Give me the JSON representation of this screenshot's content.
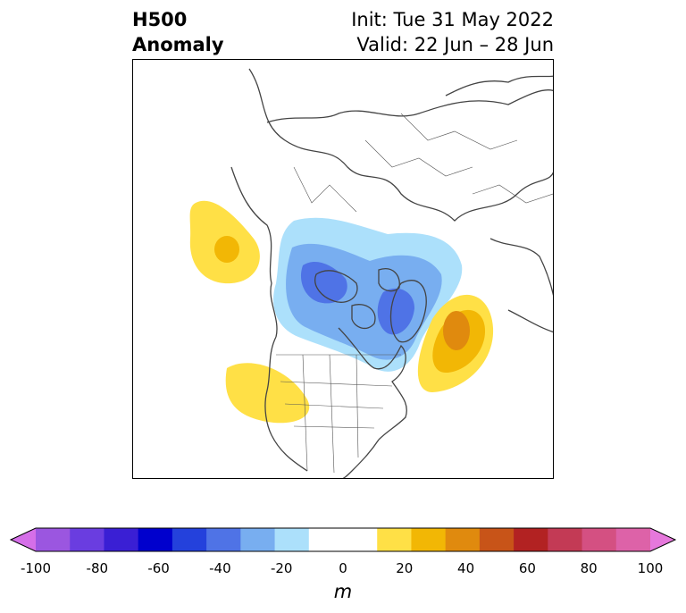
{
  "title": {
    "left_line1": "H500",
    "left_line2": "Anomaly",
    "right_line1": "Init: Tue 31 May 2022",
    "right_line2": "Valid: 22 Jun – 28 Jun"
  },
  "map": {
    "projection": "polar-stereographic (North America / Arctic)",
    "anomalies": [
      {
        "region": "Gulf of Alaska / NE Pacific",
        "sign": "positive",
        "peak_m": 25
      },
      {
        "region": "Western US / Northern Rockies",
        "sign": "positive",
        "peak_m": 15
      },
      {
        "region": "North Atlantic (east of Newfoundland)",
        "sign": "positive",
        "peak_m": 40
      },
      {
        "region": "Arctic / Alaska–Siberia",
        "sign": "negative",
        "peak_m": -45
      },
      {
        "region": "Canadian Arctic Archipelago / Baffin Bay",
        "sign": "negative",
        "peak_m": -50
      }
    ]
  },
  "colorbar": {
    "label": "m",
    "ticks": [
      "-100",
      "-80",
      "-60",
      "-40",
      "-20",
      "0",
      "20",
      "40",
      "60",
      "80",
      "100"
    ],
    "colors": [
      "#9b56e0",
      "#6a3de0",
      "#3a1fd4",
      "#0000cd",
      "#2441dc",
      "#4f73e6",
      "#78aef0",
      "#ace0fb",
      "#ffffff",
      "#ffffff",
      "#ffe046",
      "#f2b705",
      "#e08a0e",
      "#c85418",
      "#b22222",
      "#c33a55",
      "#d45082",
      "#dd62a8"
    ],
    "extend_low_color": "#d56fe8",
    "extend_high_color": "#e678dc"
  }
}
